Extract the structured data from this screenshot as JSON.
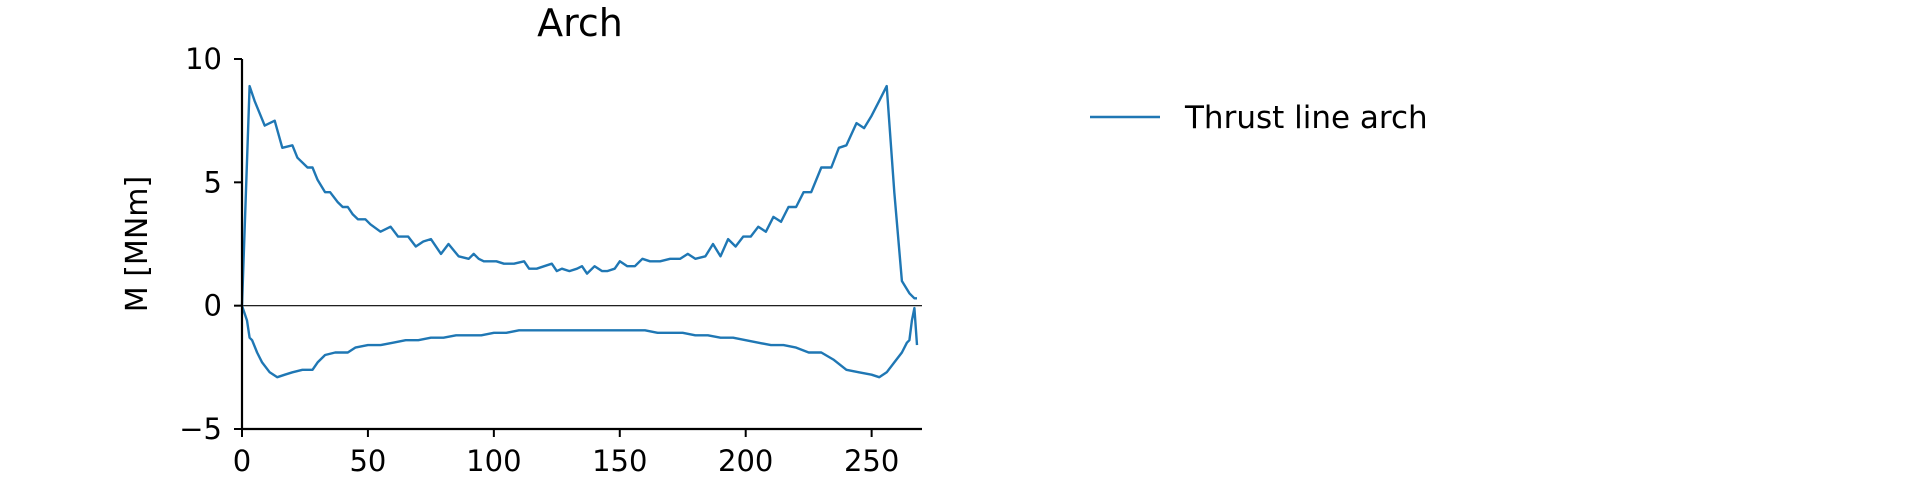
{
  "chart_data": {
    "type": "line",
    "title": "Arch",
    "xlabel": "",
    "ylabel": "M [MNm]",
    "xlim": [
      0,
      270
    ],
    "ylim": [
      -5,
      10
    ],
    "xticks": [
      0,
      50,
      100,
      150,
      200,
      250
    ],
    "yticks": [
      -5,
      0,
      5,
      10
    ],
    "xtick_labels": [
      "0",
      "50",
      "100",
      "150",
      "200",
      "250"
    ],
    "ytick_labels": [
      "−5",
      "0",
      "5",
      "10"
    ],
    "grid": false,
    "zero_line": true,
    "legend_position": "right",
    "series_color": "#1f77b4",
    "series": [
      {
        "name": "Thrust line arch",
        "upper": {
          "x": [
            0,
            3,
            5,
            9,
            13,
            16,
            20,
            22,
            26,
            28,
            30,
            33,
            35,
            38,
            40,
            42,
            44,
            46,
            49,
            51,
            55,
            59,
            62,
            66,
            69,
            72,
            75,
            79,
            82,
            86,
            90,
            92,
            94,
            96,
            98,
            101,
            104,
            108,
            112,
            114,
            117,
            120,
            123,
            125,
            127,
            130,
            133,
            135,
            137,
            140,
            143,
            145,
            148,
            150,
            153,
            156,
            159,
            162,
            166,
            170,
            174,
            177,
            180,
            184,
            187,
            190,
            193,
            196,
            199,
            202,
            205,
            208,
            211,
            214,
            217,
            220,
            223,
            226,
            230,
            234,
            237,
            240,
            244,
            247,
            250,
            253,
            256,
            259,
            262,
            265,
            267,
            268
          ],
          "y": [
            0,
            8.9,
            8.3,
            7.3,
            7.5,
            6.4,
            6.5,
            6.0,
            5.6,
            5.6,
            5.1,
            4.6,
            4.6,
            4.2,
            4.0,
            4.0,
            3.7,
            3.5,
            3.5,
            3.3,
            3.0,
            3.2,
            2.8,
            2.8,
            2.4,
            2.6,
            2.7,
            2.1,
            2.5,
            2.0,
            1.9,
            2.1,
            1.9,
            1.8,
            1.8,
            1.8,
            1.7,
            1.7,
            1.8,
            1.5,
            1.5,
            1.6,
            1.7,
            1.4,
            1.5,
            1.4,
            1.5,
            1.6,
            1.3,
            1.6,
            1.4,
            1.4,
            1.5,
            1.8,
            1.6,
            1.6,
            1.9,
            1.8,
            1.8,
            1.9,
            1.9,
            2.1,
            1.9,
            2.0,
            2.5,
            2.0,
            2.7,
            2.4,
            2.8,
            2.8,
            3.2,
            3.0,
            3.6,
            3.4,
            4.0,
            4.0,
            4.6,
            4.6,
            5.6,
            5.6,
            6.4,
            6.5,
            7.4,
            7.2,
            7.7,
            8.3,
            8.9,
            4.6,
            1.0,
            0.5,
            0.3,
            0.3
          ]
        },
        "lower": {
          "x": [
            0,
            2,
            3,
            4,
            6,
            8,
            11,
            14,
            17,
            20,
            24,
            28,
            30,
            33,
            37,
            42,
            45,
            50,
            55,
            60,
            65,
            70,
            75,
            80,
            85,
            90,
            95,
            100,
            105,
            110,
            115,
            120,
            125,
            130,
            135,
            140,
            145,
            150,
            155,
            160,
            165,
            170,
            175,
            180,
            185,
            190,
            195,
            200,
            205,
            210,
            215,
            220,
            225,
            230,
            235,
            240,
            245,
            250,
            253,
            256,
            259,
            262,
            264,
            265,
            266,
            267,
            268
          ],
          "y": [
            0,
            -0.6,
            -1.3,
            -1.4,
            -1.9,
            -2.3,
            -2.7,
            -2.9,
            -2.8,
            -2.7,
            -2.6,
            -2.6,
            -2.3,
            -2.0,
            -1.9,
            -1.9,
            -1.7,
            -1.6,
            -1.6,
            -1.5,
            -1.4,
            -1.4,
            -1.3,
            -1.3,
            -1.2,
            -1.2,
            -1.2,
            -1.1,
            -1.1,
            -1.0,
            -1.0,
            -1.0,
            -1.0,
            -1.0,
            -1.0,
            -1.0,
            -1.0,
            -1.0,
            -1.0,
            -1.0,
            -1.1,
            -1.1,
            -1.1,
            -1.2,
            -1.2,
            -1.3,
            -1.3,
            -1.4,
            -1.5,
            -1.6,
            -1.6,
            -1.7,
            -1.9,
            -1.9,
            -2.2,
            -2.6,
            -2.7,
            -2.8,
            -2.9,
            -2.7,
            -2.3,
            -1.9,
            -1.5,
            -1.4,
            -0.6,
            -0.1,
            -1.6
          ]
        }
      }
    ]
  }
}
